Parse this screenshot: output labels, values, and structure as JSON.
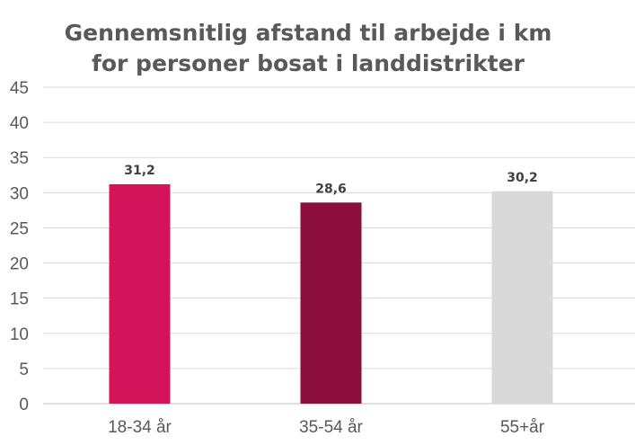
{
  "chart_data": {
    "type": "bar",
    "title": [
      "Gennemsnitlig afstand til arbejde i km",
      "for personer bosat i landdistrikter"
    ],
    "categories": [
      "18-34 år",
      "35-54 år",
      "55+år"
    ],
    "values": [
      31.2,
      28.6,
      30.2
    ],
    "value_labels": [
      "31,2",
      "28,6",
      "30,2"
    ],
    "colors": [
      "#d4145a",
      "#8b0f3a",
      "#d9d9d9"
    ],
    "ylim": [
      0,
      45
    ],
    "yticks": [
      "0",
      "5",
      "10",
      "15",
      "20",
      "25",
      "30",
      "35",
      "40",
      "45"
    ],
    "xlabel": "",
    "ylabel": "",
    "grid": true,
    "legend": "none"
  }
}
